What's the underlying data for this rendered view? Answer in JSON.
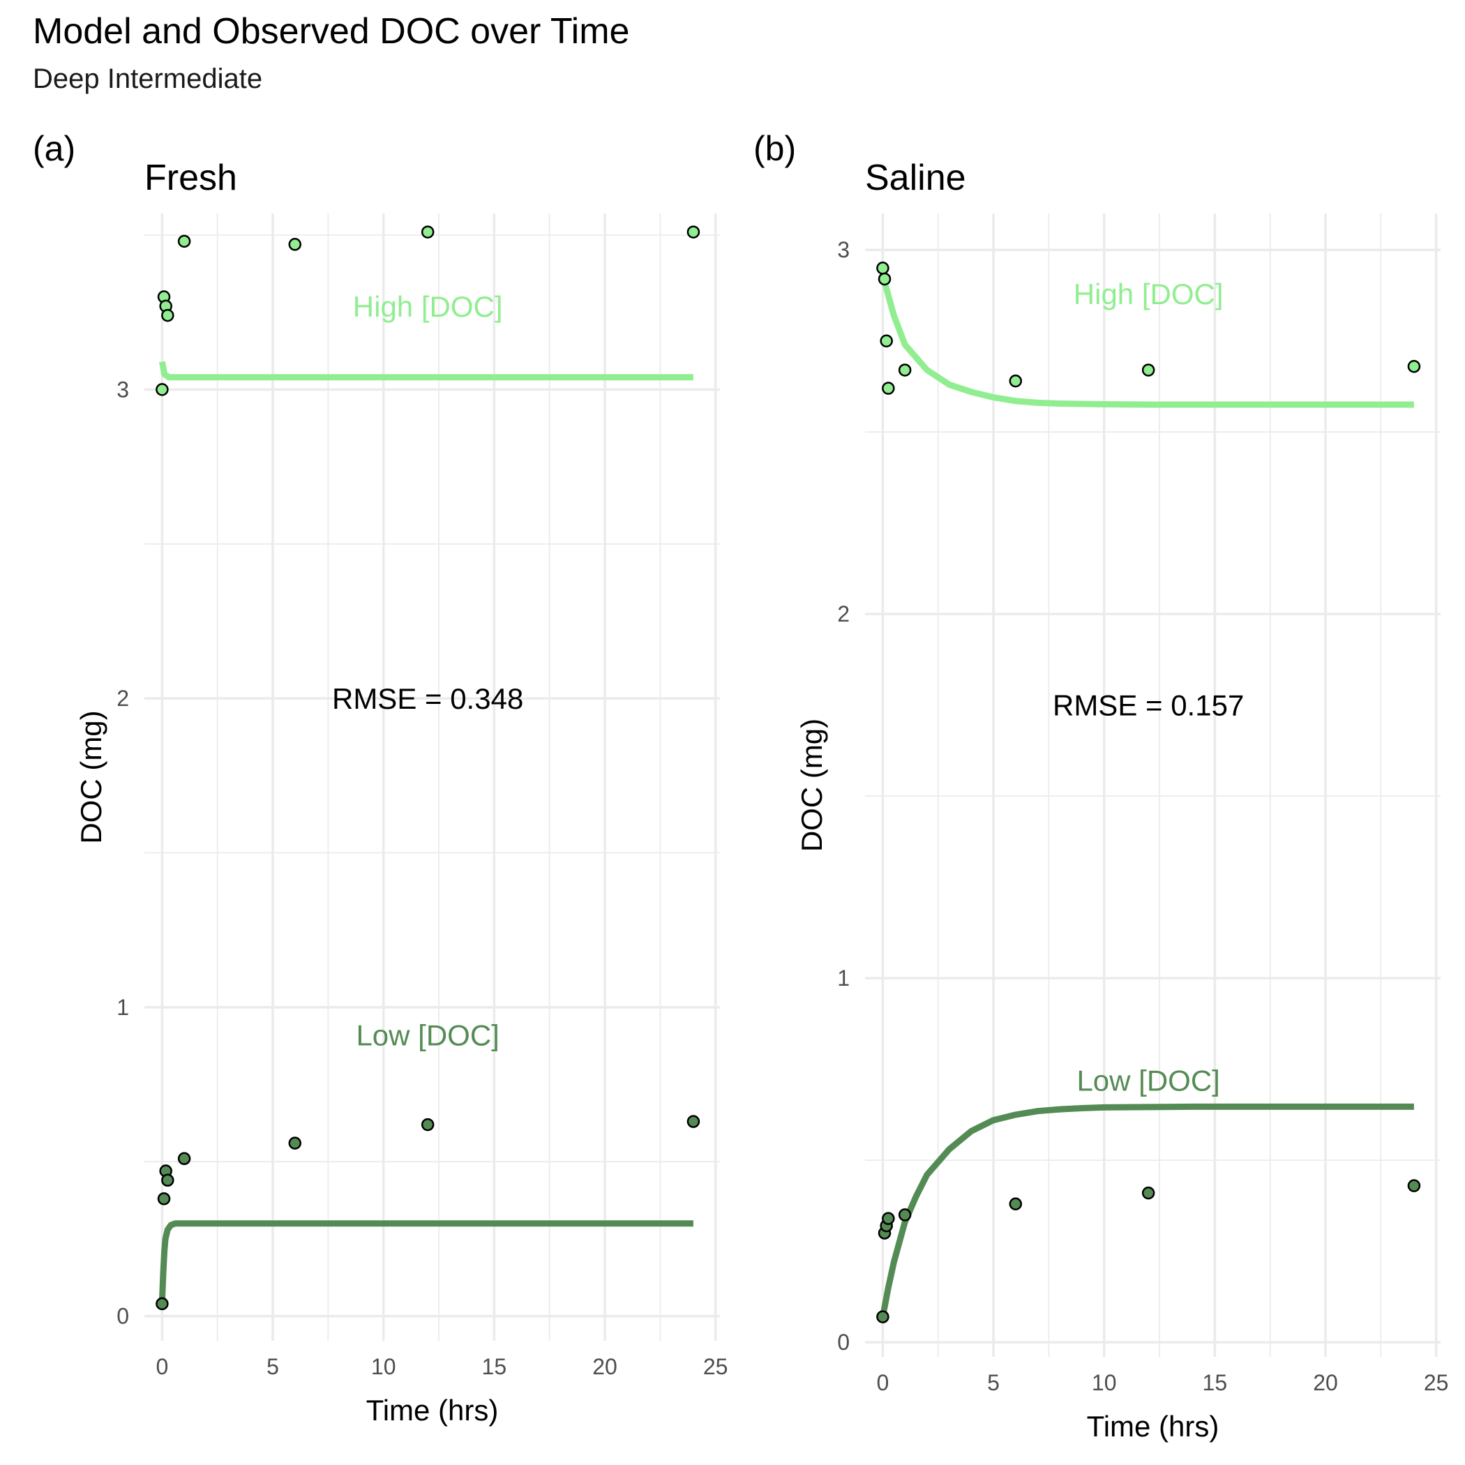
{
  "chart_data": {
    "title": "Model and Observed DOC over Time",
    "subtitle": "Deep Intermediate",
    "type": "line",
    "colors": {
      "high": "#90EE90",
      "low": "#548B54",
      "point_stroke": "#000000"
    },
    "panels": [
      {
        "tag": "(a)",
        "title": "Fresh",
        "xlabel": "Time (hrs)",
        "ylabel": "DOC (mg)",
        "xlim": [
          -0.8,
          25.2
        ],
        "ylim": [
          -0.08,
          3.57
        ],
        "xticks": [
          0,
          5,
          10,
          15,
          20,
          25
        ],
        "xtick_labels": [
          "0",
          "5",
          "10",
          "15",
          "20",
          "25"
        ],
        "yticks": [
          0,
          1,
          2,
          3
        ],
        "ytick_labels": [
          "0",
          "1",
          "2",
          "3"
        ],
        "rmse": "RMSE = 0.348",
        "rmse_pos": [
          12,
          2.0
        ],
        "series": [
          {
            "name": "High [DOC]",
            "label_pos": [
              12,
              3.27
            ],
            "model": {
              "x": [
                0,
                0.1,
                0.3,
                1,
                2,
                4,
                6,
                8,
                10,
                12,
                14,
                16,
                18,
                20,
                22,
                24
              ],
              "y": [
                3.09,
                3.05,
                3.04,
                3.04,
                3.04,
                3.04,
                3.04,
                3.04,
                3.04,
                3.04,
                3.04,
                3.04,
                3.04,
                3.04,
                3.04,
                3.04
              ]
            },
            "observed": {
              "x": [
                0,
                0.083,
                0.167,
                0.25,
                1,
                6,
                12,
                24
              ],
              "y": [
                3.0,
                3.3,
                3.27,
                3.24,
                3.48,
                3.47,
                3.51,
                3.51
              ]
            }
          },
          {
            "name": "Low [DOC]",
            "label_pos": [
              12,
              0.91
            ],
            "model": {
              "x": [
                0,
                0.05,
                0.1,
                0.15,
                0.25,
                0.4,
                0.6,
                1,
                2,
                4,
                6,
                8,
                10,
                12,
                14,
                16,
                18,
                20,
                22,
                24
              ],
              "y": [
                0.05,
                0.14,
                0.21,
                0.25,
                0.28,
                0.295,
                0.3,
                0.3,
                0.3,
                0.3,
                0.3,
                0.3,
                0.3,
                0.3,
                0.3,
                0.3,
                0.3,
                0.3,
                0.3,
                0.3
              ]
            },
            "observed": {
              "x": [
                0,
                0.083,
                0.167,
                0.25,
                1,
                6,
                12,
                24
              ],
              "y": [
                0.04,
                0.38,
                0.47,
                0.44,
                0.51,
                0.56,
                0.62,
                0.63
              ]
            }
          }
        ]
      },
      {
        "tag": "(b)",
        "title": "Saline",
        "xlabel": "Time (hrs)",
        "ylabel": "DOC (mg)",
        "xlim": [
          -0.8,
          25.2
        ],
        "ylim": [
          -0.04,
          3.1
        ],
        "xticks": [
          0,
          5,
          10,
          15,
          20,
          25
        ],
        "xtick_labels": [
          "0",
          "5",
          "10",
          "15",
          "20",
          "25"
        ],
        "yticks": [
          0,
          1,
          2,
          3
        ],
        "ytick_labels": [
          "0",
          "1",
          "2",
          "3"
        ],
        "rmse": "RMSE = 0.157",
        "rmse_pos": [
          12,
          1.75
        ],
        "series": [
          {
            "name": "High [DOC]",
            "label_pos": [
              12,
              2.88
            ],
            "model": {
              "x": [
                0,
                0.5,
                1,
                2,
                3,
                4,
                5,
                6,
                7,
                8,
                9,
                10,
                12,
                14,
                16,
                18,
                20,
                22,
                24
              ],
              "y": [
                2.93,
                2.82,
                2.74,
                2.67,
                2.63,
                2.61,
                2.595,
                2.585,
                2.58,
                2.578,
                2.577,
                2.576,
                2.575,
                2.575,
                2.575,
                2.575,
                2.575,
                2.575,
                2.575
              ]
            },
            "observed": {
              "x": [
                0,
                0.083,
                0.167,
                0.25,
                1,
                6,
                12,
                24
              ],
              "y": [
                2.95,
                2.92,
                2.75,
                2.62,
                2.67,
                2.64,
                2.67,
                2.68
              ]
            }
          },
          {
            "name": "Low [DOC]",
            "label_pos": [
              12,
              0.72
            ],
            "model": {
              "x": [
                0,
                0.25,
                0.5,
                1,
                1.5,
                2,
                3,
                4,
                5,
                6,
                7,
                8,
                9,
                10,
                12,
                14,
                16,
                18,
                20,
                22,
                24
              ],
              "y": [
                0.07,
                0.15,
                0.22,
                0.33,
                0.4,
                0.46,
                0.53,
                0.58,
                0.61,
                0.625,
                0.635,
                0.64,
                0.643,
                0.645,
                0.646,
                0.647,
                0.647,
                0.647,
                0.647,
                0.647,
                0.647
              ]
            },
            "observed": {
              "x": [
                0,
                0.083,
                0.167,
                0.25,
                1,
                6,
                12,
                24
              ],
              "y": [
                0.07,
                0.3,
                0.32,
                0.34,
                0.35,
                0.38,
                0.41,
                0.43
              ]
            }
          }
        ]
      }
    ]
  }
}
